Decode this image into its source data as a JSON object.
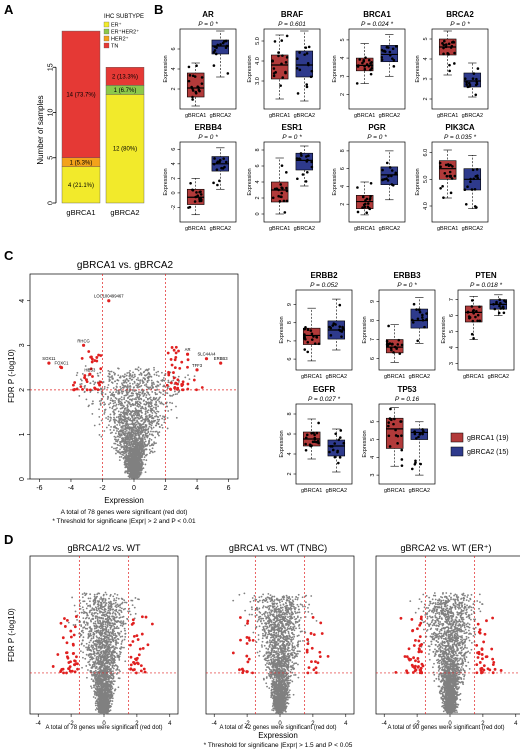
{
  "panel_letters": {
    "A": "A",
    "B": "B",
    "C": "C",
    "D": "D"
  },
  "colors": {
    "red": "#e53935",
    "yellow": "#f2ea2b",
    "orange": "#f3a21b",
    "green": "#8cc84b",
    "box_red": "#b23a3a",
    "box_blue": "#2e3a8c",
    "gray": "#808080",
    "dot_red": "#e02020"
  },
  "chart_data": [
    {
      "type": "bar",
      "panel": "A",
      "ylabel": "Number of samples",
      "ylim": [
        0,
        20
      ],
      "yticks": [
        "0",
        "5",
        "10",
        "15"
      ],
      "categories": [
        "gBRCA1",
        "gBRCA2"
      ],
      "legend": {
        "title": "IHC SUBTYPE",
        "entries": [
          "ER⁺",
          "ER⁺HER2⁺",
          "HER2⁺",
          "TN"
        ]
      },
      "series": [
        {
          "name": "ER⁺",
          "values": [
            4,
            12
          ],
          "labels": [
            "4 (21.1%)",
            "12 (80%)"
          ]
        },
        {
          "name": "ER⁺HER2⁺",
          "values": [
            0,
            1
          ],
          "labels": [
            "",
            "1 (6.7%)"
          ]
        },
        {
          "name": "HER2⁺",
          "values": [
            1,
            0
          ],
          "labels": [
            "1 (5.3%)",
            ""
          ]
        },
        {
          "name": "TN",
          "values": [
            14,
            2
          ],
          "labels": [
            "14 (73.7%)",
            "2 (13.3%)"
          ]
        }
      ]
    },
    {
      "type": "box",
      "panel": "B/C",
      "ylabel": "Expression",
      "groups": [
        "gBRCA1",
        "gBRCA2"
      ],
      "legend": [
        "gBRCA1 (19)",
        "gBRCA2 (15)"
      ],
      "genes": [
        {
          "name": "AR",
          "p": "P = 0 *",
          "yticks": [
            "2",
            "4",
            "6"
          ],
          "ylim": [
            0,
            8
          ],
          "b1": [
            0.3,
            1.2,
            2.1,
            3.6,
            4.6
          ],
          "b2": [
            3.2,
            5.5,
            6.3,
            6.9,
            7.8
          ]
        },
        {
          "name": "BRAF",
          "p": "P = 0.601",
          "yticks": [
            "3.0",
            "4.0",
            "5.0"
          ],
          "ylim": [
            1.6,
            5.6
          ],
          "b1": [
            2.1,
            3.1,
            3.8,
            4.3,
            5.3
          ],
          "b2": [
            2.0,
            3.2,
            3.8,
            4.5,
            5.5
          ]
        },
        {
          "name": "BRCA1",
          "p": "P = 0.024 *",
          "yticks": [
            "2",
            "3",
            "4",
            "5"
          ],
          "ylim": [
            1.2,
            5.6
          ],
          "b1": [
            2.6,
            3.3,
            3.6,
            4.0,
            4.8
          ],
          "b2": [
            3.0,
            3.8,
            4.2,
            4.7,
            5.3
          ]
        },
        {
          "name": "BRCA2",
          "p": "P = 0 *",
          "yticks": [
            "2",
            "3",
            "4",
            "5"
          ],
          "ylim": [
            1.5,
            5.5
          ],
          "b1": [
            3.2,
            4.2,
            4.6,
            5.0,
            5.4
          ],
          "b2": [
            2.1,
            2.6,
            2.9,
            3.3,
            3.8
          ]
        },
        {
          "name": "ERBB4",
          "p": "P = 0 *",
          "yticks": [
            "-2",
            "0",
            "2",
            "4",
            "6"
          ],
          "ylim": [
            -4,
            7
          ],
          "b1": [
            -3,
            -1.6,
            -0.6,
            0.5,
            2
          ],
          "b2": [
            0.5,
            3,
            4,
            5,
            6.2
          ]
        },
        {
          "name": "ESR1",
          "p": "P = 0 *",
          "yticks": [
            "0",
            "2",
            "4",
            "6",
            "8"
          ],
          "ylim": [
            -1,
            9
          ],
          "b1": [
            0,
            1.5,
            3,
            4,
            7
          ],
          "b2": [
            3.5,
            5.5,
            6.7,
            7.6,
            8.5
          ]
        },
        {
          "name": "PGR",
          "p": "P = 0 *",
          "yticks": [
            "2",
            "4",
            "6",
            "8"
          ],
          "ylim": [
            0,
            9
          ],
          "b1": [
            0.8,
            1.5,
            2.3,
            3,
            4.5
          ],
          "b2": [
            2.5,
            4.2,
            5.3,
            6.2,
            8
          ]
        },
        {
          "name": "PIK3CA",
          "p": "P = 0.035 *",
          "yticks": [
            "4.0",
            "5.0",
            "6.0"
          ],
          "ylim": [
            3.4,
            6.4
          ],
          "b1": [
            4.3,
            5.0,
            5.4,
            5.7,
            6.1
          ],
          "b2": [
            3.9,
            4.6,
            5.0,
            5.4,
            5.9
          ]
        },
        {
          "name": "ERBB2",
          "p": "P = 0.052",
          "yticks": [
            "6",
            "7",
            "8",
            "9"
          ],
          "ylim": [
            5.4,
            9.8
          ],
          "b1": [
            5.9,
            6.8,
            7.3,
            7.7,
            8.8
          ],
          "b2": [
            6.5,
            7.1,
            7.6,
            8.1,
            9.3
          ]
        },
        {
          "name": "ERBB3",
          "p": "P = 0 *",
          "yticks": [
            "6",
            "7",
            "8",
            "9"
          ],
          "ylim": [
            5.4,
            9.6
          ],
          "b1": [
            5.8,
            6.3,
            6.6,
            7.0,
            7.8
          ],
          "b2": [
            6.8,
            7.6,
            8.0,
            8.6,
            9.2
          ]
        },
        {
          "name": "PTEN",
          "p": "P = 0.018 *",
          "yticks": [
            "3",
            "4",
            "5",
            "6",
            "7"
          ],
          "ylim": [
            2.6,
            7.6
          ],
          "b1": [
            4.5,
            5.6,
            6.2,
            6.6,
            7.2
          ],
          "b2": [
            6.0,
            6.4,
            6.7,
            7.0,
            7.3
          ]
        },
        {
          "name": "EGFR",
          "p": "P = 0.027 *",
          "yticks": [
            "2",
            "4",
            "6",
            "8"
          ],
          "ylim": [
            1,
            9
          ],
          "b1": [
            3.5,
            4.8,
            5.5,
            6.2,
            7.5
          ],
          "b2": [
            2.2,
            3.8,
            4.8,
            5.4,
            6.5
          ]
        },
        {
          "name": "TP53",
          "p": "P = 0.16",
          "yticks": [
            "3",
            "4",
            "5",
            "6"
          ],
          "ylim": [
            2.5,
            7
          ],
          "b1": [
            3.5,
            4.5,
            5.6,
            6.2,
            6.8
          ],
          "b2": [
            3.0,
            5.0,
            5.4,
            5.6,
            6.0
          ]
        }
      ]
    },
    {
      "type": "scatter",
      "panel": "C",
      "title": "gBRCA1 vs. gBRCA2",
      "xlabel": "Expression",
      "ylabel": "FDR P (-log10)",
      "xticks": [
        "-6",
        "-4",
        "-2",
        "0",
        "2",
        "4",
        "6"
      ],
      "yticks": [
        "0",
        "1",
        "2",
        "3",
        "4"
      ],
      "xlim": [
        -6.6,
        6.6
      ],
      "ylim": [
        0,
        4.6
      ],
      "thresholds": {
        "x": [
          -2,
          2
        ],
        "y": 2
      },
      "labels": [
        "LOC100499467",
        "RHCG",
        "SOX11",
        "FOXC1",
        "HES3",
        "AR",
        "SLC44A4",
        "ERBB3",
        "TFF3"
      ],
      "caption": "A total of 78 genes were significant (red dot)",
      "footnote": "* Threshold for significane |Expr| > 2 and P < 0.01"
    },
    {
      "type": "scatter",
      "panel": "D",
      "xlabel": "Expression",
      "ylabel": "FDR P (-log10)",
      "xticks": [
        "-4",
        "-2",
        "0",
        "2",
        "4"
      ],
      "xlim": [
        -4.5,
        4.5
      ],
      "ylim": [
        0,
        5
      ],
      "thresholds": {
        "x": [
          -1.5,
          1.5
        ],
        "y": 1.3
      },
      "plots": [
        {
          "title": "gBRCA1/2 vs. WT",
          "caption": "A total of 78 genes were significant (red dot)"
        },
        {
          "title": "gBRCA1 vs. WT (TNBC)",
          "caption": "A total of 42 genes were significant (red dot)"
        },
        {
          "title": "gBRCA2 vs. WT (ER⁺)",
          "caption": "A total of 90 genes were significant (red dot)"
        }
      ],
      "footnote": "* Threshold for significane |Expr| > 1.5 and P < 0.05"
    }
  ]
}
